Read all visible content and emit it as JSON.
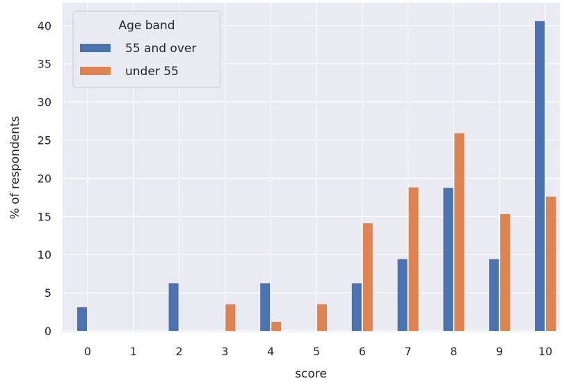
{
  "chart_data": {
    "type": "bar",
    "title": "",
    "xlabel": "score",
    "ylabel": "% of respondents",
    "categories": [
      "0",
      "1",
      "2",
      "3",
      "4",
      "5",
      "6",
      "7",
      "8",
      "9",
      "10"
    ],
    "series": [
      {
        "name": "55 and over",
        "color": "#4c72b0",
        "values": [
          3.1,
          0,
          6.25,
          0,
          6.25,
          0,
          6.25,
          9.4,
          18.75,
          9.4,
          40.6
        ]
      },
      {
        "name": "under 55",
        "color": "#dd8452",
        "values": [
          0,
          0,
          0,
          3.5,
          1.2,
          3.5,
          14.1,
          18.8,
          25.9,
          15.3,
          17.6
        ]
      }
    ],
    "ylim": [
      0,
      42.5
    ],
    "yticks": [
      0,
      5,
      10,
      15,
      20,
      25,
      30,
      35,
      40
    ],
    "legend": {
      "title": "Age band",
      "position": "top-left"
    },
    "grid": true,
    "background": "#eaeaf2"
  }
}
